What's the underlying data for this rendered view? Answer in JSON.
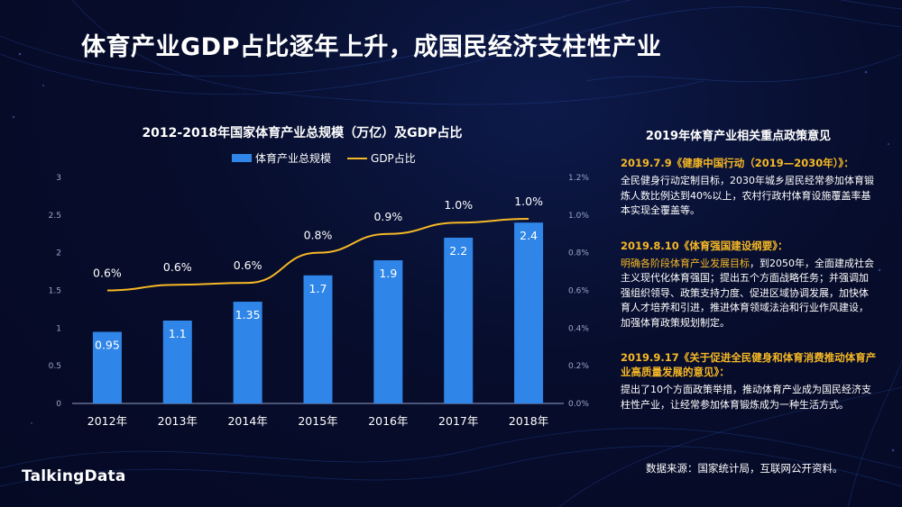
{
  "page_title": "体育产业GDP占比逐年上升，成国民经济支柱性产业",
  "chart_data": {
    "type": "bar",
    "title": "2012-2018年国家体育产业总规模（万亿）及GDP占比",
    "categories": [
      "2012年",
      "2013年",
      "2014年",
      "2015年",
      "2016年",
      "2017年",
      "2018年"
    ],
    "series": [
      {
        "name": "体育产业总规模",
        "type": "bar",
        "values": [
          0.95,
          1.1,
          1.35,
          1.7,
          1.9,
          2.2,
          2.4
        ],
        "labels": [
          "0.95",
          "1.1",
          "1.35",
          "1.7",
          "1.9",
          "2.2",
          "2.4"
        ],
        "color": "#2f86e8"
      },
      {
        "name": "GDP占比",
        "type": "line",
        "values": [
          0.6,
          0.63,
          0.64,
          0.8,
          0.9,
          0.96,
          0.98
        ],
        "labels": [
          "0.6%",
          "0.6%",
          "0.6%",
          "0.8%",
          "0.9%",
          "1.0%",
          "1.0%"
        ],
        "color": "#f6b825"
      }
    ],
    "y_left": {
      "ylim": [
        0,
        3
      ],
      "ticks": [
        "0",
        "0.5",
        "1",
        "1.5",
        "2",
        "2.5",
        "3"
      ]
    },
    "y_right": {
      "ylim": [
        0,
        1.2
      ],
      "ticks": [
        "0.0%",
        "0.2%",
        "0.4%",
        "0.6%",
        "0.8%",
        "1.0%",
        "1.2%"
      ]
    },
    "legend_position": "top-center",
    "grid": false
  },
  "panel": {
    "title": "2019年体育产业相关重点政策意见",
    "policies": [
      {
        "heading": "2019.7.9《健康中国行动（2019—2030年）》：",
        "highlight": "",
        "body": "全民健身行动定制目标，2030年城乡居民经常参加体育锻炼人数比例达到40%以上，农村行政村体育设施覆盖率基本实现全覆盖等。"
      },
      {
        "heading": "2019.8.10《体育强国建设纲要》：",
        "highlight": "明确各阶段体育产业发展目标",
        "body": "，到2050年，全面建成社会主义现代化体育强国；提出五个方面战略任务；并强调加强组织领导、政策支持力度、促进区域协调发展，加快体育人才培养和引进，推进体育领域法治和行业作风建设，加强体育政策规划制定。"
      },
      {
        "heading": "2019.9.17《关于促进全民健身和体育消费推动体育产业高质量发展的意见》：",
        "highlight": "",
        "body": "提出了10个方面政策举措，推动体育产业成为国民经济支柱性产业，让经常参加体育锻炼成为一种生活方式。"
      }
    ]
  },
  "source": "数据来源：国家统计局，互联网公开资料。",
  "logo": "TalkingData"
}
